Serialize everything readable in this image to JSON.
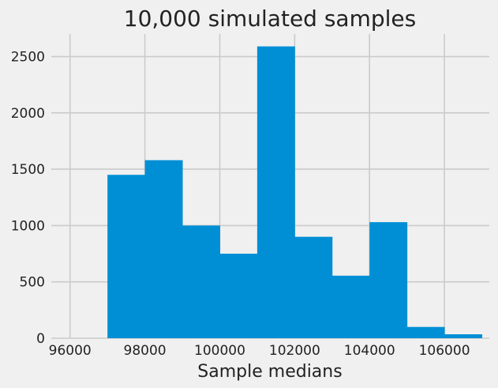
{
  "chart_data": {
    "type": "bar",
    "title": "10,000 simulated samples",
    "xlabel": "Sample medians",
    "ylabel": "",
    "xlim": [
      95500,
      107200
    ],
    "ylim": [
      0,
      2700
    ],
    "grid": true,
    "bar_color": "#008fd5",
    "bins": [
      {
        "x0": 97000,
        "x1": 98000,
        "count": 1450
      },
      {
        "x0": 98000,
        "x1": 99000,
        "count": 1580
      },
      {
        "x0": 99000,
        "x1": 100000,
        "count": 1000
      },
      {
        "x0": 100000,
        "x1": 101000,
        "count": 750
      },
      {
        "x0": 101000,
        "x1": 102000,
        "count": 2590
      },
      {
        "x0": 102000,
        "x1": 103000,
        "count": 900
      },
      {
        "x0": 103000,
        "x1": 104000,
        "count": 555
      },
      {
        "x0": 104000,
        "x1": 105000,
        "count": 1030
      },
      {
        "x0": 105000,
        "x1": 106000,
        "count": 100
      },
      {
        "x0": 106000,
        "x1": 107000,
        "count": 35
      }
    ],
    "xticks": [
      96000,
      98000,
      100000,
      102000,
      104000,
      106000
    ],
    "xtick_labels": [
      "96000",
      "98000",
      "100000",
      "102000",
      "104000",
      "106000"
    ],
    "yticks": [
      0,
      500,
      1000,
      1500,
      2000,
      2500
    ],
    "ytick_labels": [
      "0",
      "500",
      "1000",
      "1500",
      "2000",
      "2500"
    ]
  }
}
